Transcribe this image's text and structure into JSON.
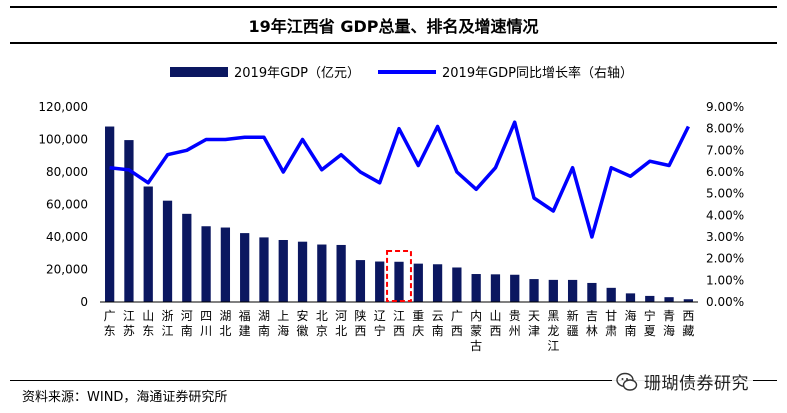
{
  "chart_data": {
    "type": "bar+line",
    "title": "19年江西省 GDP总量、排名及增速情况",
    "categories": [
      "广东",
      "江苏",
      "山东",
      "浙江",
      "河南",
      "四川",
      "湖北",
      "福建",
      "湖南",
      "上海",
      "安徽",
      "北京",
      "河北",
      "陕西",
      "辽宁",
      "江西",
      "重庆",
      "云南",
      "广西",
      "内蒙古",
      "山西",
      "贵州",
      "天津",
      "黑龙江",
      "新疆",
      "吉林",
      "甘肃",
      "海南",
      "宁夏",
      "青海",
      "西藏"
    ],
    "series": [
      {
        "name": "2019年GDP（亿元）",
        "type": "bar",
        "axis": "left",
        "color": "#0b1760",
        "values": [
          107987,
          99632,
          71068,
          62352,
          54259,
          46616,
          45828,
          42395,
          39752,
          38155,
          37114,
          35371,
          35105,
          25793,
          24909,
          24758,
          23606,
          23224,
          21237,
          17213,
          17027,
          16769,
          14104,
          13613,
          13597,
          11727,
          8718,
          5309,
          3748,
          2966,
          1698
        ]
      },
      {
        "name": "2019年GDP同比增长率（右轴）",
        "type": "line",
        "axis": "right",
        "color": "#0000ff",
        "values": [
          6.2,
          6.1,
          5.5,
          6.8,
          7.0,
          7.5,
          7.5,
          7.6,
          7.6,
          6.0,
          7.5,
          6.1,
          6.8,
          6.0,
          5.5,
          8.0,
          6.3,
          8.1,
          6.0,
          5.2,
          6.2,
          8.3,
          4.8,
          4.2,
          6.2,
          3.0,
          6.2,
          5.8,
          6.5,
          6.3,
          8.1
        ]
      }
    ],
    "ylim_left": [
      0,
      120000
    ],
    "yticks_left": [
      "0",
      "20,000",
      "40,000",
      "60,000",
      "80,000",
      "100,000",
      "120,000"
    ],
    "ylim_right": [
      0,
      9
    ],
    "yticks_right": [
      "0.00%",
      "1.00%",
      "2.00%",
      "3.00%",
      "4.00%",
      "5.00%",
      "6.00%",
      "7.00%",
      "8.00%",
      "9.00%"
    ],
    "highlight_category": "江西",
    "legend_position": "top"
  },
  "source_text": "资料来源：WIND，海通证券研究所",
  "watermark_text": "珊瑚债券研究"
}
